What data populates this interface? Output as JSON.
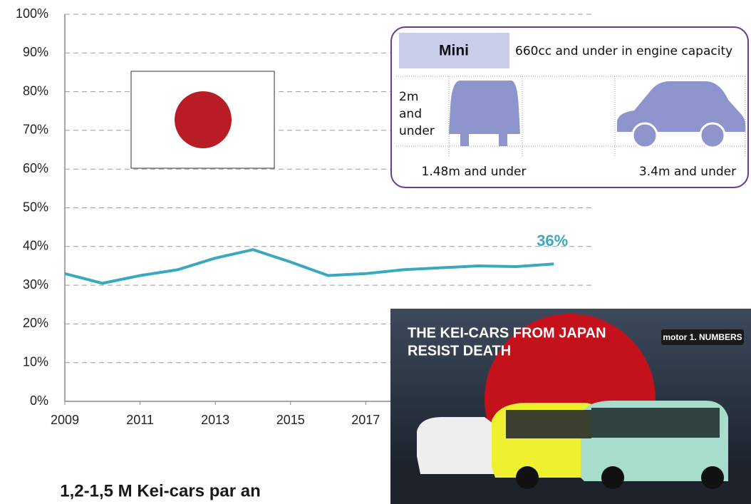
{
  "chart_data": {
    "type": "line",
    "x": [
      2009,
      2010,
      2011,
      2012,
      2013,
      2014,
      2015,
      2016,
      2017,
      2018,
      2019,
      2020,
      2021,
      2022
    ],
    "values": [
      33,
      30.5,
      32.5,
      34,
      37,
      39.2,
      36,
      32.5,
      33,
      34,
      34.5,
      35,
      34.8,
      35.5
    ],
    "value_labels": [
      null,
      null,
      null,
      null,
      null,
      null,
      null,
      null,
      null,
      null,
      null,
      null,
      null,
      "36%"
    ],
    "color": "#3aa8c1",
    "xlim": [
      2009,
      2023
    ],
    "xticks": [
      2009,
      2011,
      2013,
      2015,
      2017
    ],
    "ylim": [
      0,
      100
    ],
    "yticks": [
      {
        "value": 0,
        "label": "0%"
      },
      {
        "value": 10,
        "label": "10%"
      },
      {
        "value": 20,
        "label": "20%"
      },
      {
        "value": 30,
        "label": "30%"
      },
      {
        "value": 40,
        "label": "40%"
      },
      {
        "value": 50,
        "label": "50%"
      },
      {
        "value": 60,
        "label": "60%"
      },
      {
        "value": 70,
        "label": "70%"
      },
      {
        "value": 80,
        "label": "80%"
      },
      {
        "value": 90,
        "label": "90%"
      },
      {
        "value": 100,
        "label": "100%"
      }
    ],
    "grid": true
  },
  "info_box": {
    "title": "Mini",
    "description": "660cc and under in engine capacity",
    "height_label": [
      "2m",
      "and",
      "under"
    ],
    "width_label": "1.48m and under",
    "length_label": "3.4m and under"
  },
  "thumbnail": {
    "headline": [
      "THE KEI-CARS FROM JAPAN",
      "RESIST DEATH"
    ],
    "logo": "motor 1. NUMBERS"
  },
  "caption": "1,2-1,5 M Kei-cars par an"
}
